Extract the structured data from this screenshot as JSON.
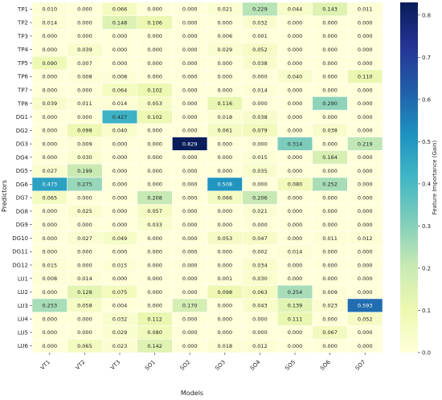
{
  "chart_data": {
    "type": "heatmap",
    "title": "",
    "xlabel": "Models",
    "ylabel": "Predictors",
    "x_categories": [
      "VT1",
      "VT2",
      "VT3",
      "SO1",
      "SO2",
      "SO3",
      "SO4",
      "SO5",
      "SO6",
      "SO7"
    ],
    "y_categories": [
      "TP1",
      "TP2",
      "TP3",
      "TP4",
      "TP5",
      "TP6",
      "TP7",
      "TP8",
      "DG1",
      "DG2",
      "DG3",
      "DG4",
      "DG5",
      "DG6",
      "DG7",
      "DG8",
      "DG9",
      "DG10",
      "DG11",
      "DG12",
      "LU1",
      "LU2",
      "LU3",
      "LU4",
      "LU5",
      "LU6"
    ],
    "values": [
      [
        0.01,
        0.0,
        0.066,
        0.0,
        0.0,
        0.021,
        0.229,
        0.044,
        0.143,
        0.011
      ],
      [
        0.014,
        0.0,
        0.148,
        0.106,
        0.0,
        0.0,
        0.032,
        0.0,
        0.0,
        0.0
      ],
      [
        0.0,
        0.0,
        0.0,
        0.0,
        0.0,
        0.006,
        0.001,
        0.0,
        0.0,
        0.0
      ],
      [
        0.0,
        0.039,
        0.0,
        0.0,
        0.0,
        0.029,
        0.052,
        0.0,
        0.0,
        0.0
      ],
      [
        0.09,
        0.007,
        0.0,
        0.0,
        0.0,
        0.0,
        0.038,
        0.0,
        0.0,
        0.0
      ],
      [
        0.0,
        0.008,
        0.008,
        0.0,
        0.0,
        0.0,
        0.0,
        0.04,
        0.0,
        0.11
      ],
      [
        0.0,
        0.0,
        0.064,
        0.102,
        0.0,
        0.0,
        0.014,
        0.0,
        0.0,
        0.0
      ],
      [
        0.039,
        0.011,
        0.014,
        0.053,
        0.0,
        0.116,
        0.0,
        0.0,
        0.29,
        0.0
      ],
      [
        0.0,
        0.0,
        0.427,
        0.102,
        0.0,
        0.018,
        0.038,
        0.0,
        0.0,
        0.0
      ],
      [
        0.0,
        0.098,
        0.04,
        0.0,
        0.0,
        0.061,
        0.079,
        0.0,
        0.038,
        0.0
      ],
      [
        0.0,
        0.009,
        0.0,
        0.0,
        0.829,
        0.0,
        0.0,
        0.314,
        0.0,
        0.219
      ],
      [
        0.0,
        0.03,
        0.0,
        0.0,
        0.0,
        0.0,
        0.015,
        0.0,
        0.164,
        0.0
      ],
      [
        0.027,
        0.199,
        0.0,
        0.0,
        0.0,
        0.0,
        0.035,
        0.0,
        0.0,
        0.0
      ],
      [
        0.473,
        0.275,
        0.0,
        0.0,
        0.0,
        0.508,
        0.0,
        0.08,
        0.252,
        0.0
      ],
      [
        0.065,
        0.0,
        0.0,
        0.208,
        0.0,
        0.066,
        0.206,
        0.0,
        0.0,
        0.0
      ],
      [
        0.0,
        0.025,
        0.0,
        0.057,
        0.0,
        0.0,
        0.021,
        0.0,
        0.0,
        0.0
      ],
      [
        0.0,
        0.0,
        0.0,
        0.033,
        0.0,
        0.0,
        0.0,
        0.0,
        0.0,
        0.0
      ],
      [
        0.0,
        0.027,
        0.049,
        0.0,
        0.0,
        0.053,
        0.047,
        0.0,
        0.011,
        0.012
      ],
      [
        0.0,
        0.0,
        0.0,
        0.0,
        0.0,
        0.0,
        0.002,
        0.014,
        0.0,
        0.0
      ],
      [
        0.015,
        0.0,
        0.015,
        0.0,
        0.0,
        0.0,
        0.034,
        0.0,
        0.0,
        0.0
      ],
      [
        0.008,
        0.014,
        0.0,
        0.0,
        0.0,
        0.001,
        0.03,
        0.0,
        0.0,
        0.0
      ],
      [
        0.0,
        0.128,
        0.075,
        0.0,
        0.0,
        0.098,
        0.063,
        0.254,
        0.009,
        0.0
      ],
      [
        0.253,
        0.058,
        0.004,
        0.0,
        0.17,
        0.0,
        0.043,
        0.139,
        0.023,
        0.593
      ],
      [
        0.0,
        0.0,
        0.032,
        0.112,
        0.0,
        0.0,
        0.0,
        0.111,
        0.0,
        0.052
      ],
      [
        0.0,
        0.0,
        0.029,
        0.08,
        0.0,
        0.0,
        0.0,
        0.0,
        0.067,
        0.0
      ],
      [
        0.0,
        0.065,
        0.023,
        0.142,
        0.0,
        0.018,
        0.012,
        0.0,
        0.0,
        0.0
      ]
    ],
    "value_format": "3 decimals",
    "colorbar": {
      "label": "Feature Importance (Gain)",
      "range": [
        0.0,
        0.83
      ],
      "ticks": [
        "0.0",
        "0.1",
        "0.2",
        "0.3",
        "0.4",
        "0.5",
        "0.6",
        "0.7",
        "0.8"
      ],
      "colormap": "YlGnBu",
      "colors": [
        "#ffffd9",
        "#edf8b1",
        "#c7e9b4",
        "#7fcdbb",
        "#41b6c4",
        "#1d91c0",
        "#225ea8",
        "#253494",
        "#081d58"
      ]
    },
    "grid": true,
    "legend": "colorbar-right"
  }
}
